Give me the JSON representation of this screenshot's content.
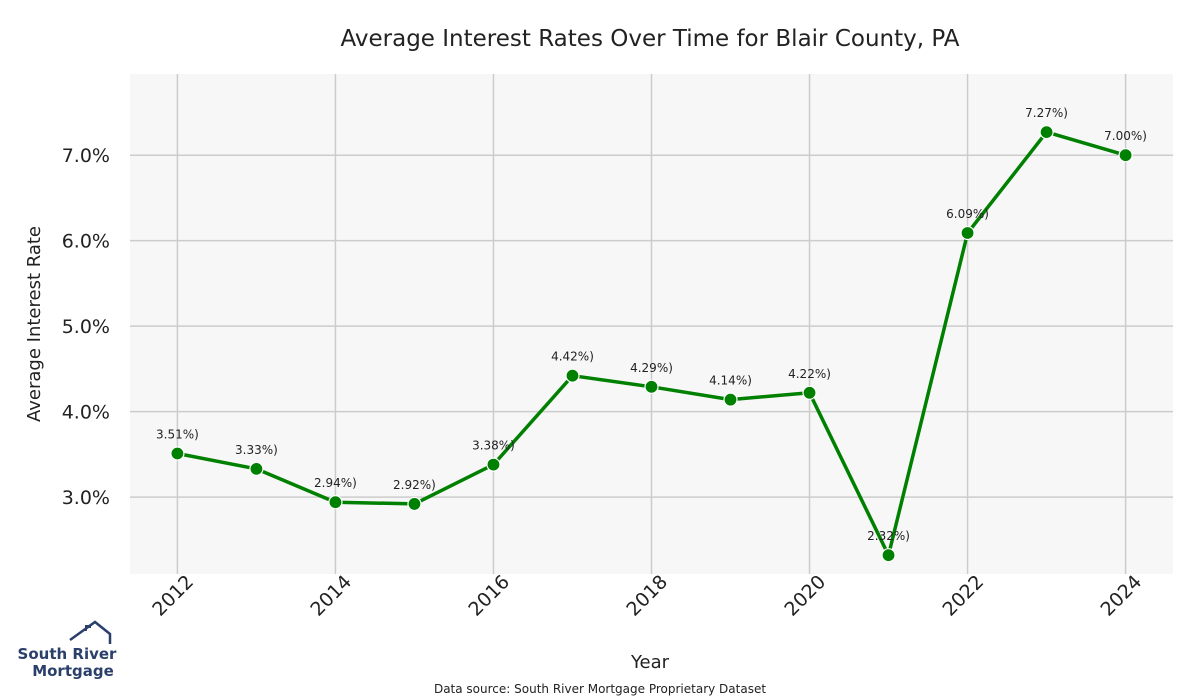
{
  "chart_data": {
    "type": "line",
    "title": "Average Interest Rates Over Time for Blair County, PA",
    "xlabel": "Year",
    "ylabel": "Average Interest Rate",
    "x": [
      2012,
      2013,
      2014,
      2015,
      2016,
      2017,
      2018,
      2019,
      2020,
      2021,
      2022,
      2023,
      2024
    ],
    "values": [
      3.51,
      3.33,
      2.94,
      2.92,
      3.38,
      4.42,
      4.29,
      4.14,
      4.22,
      2.32,
      6.09,
      7.27,
      7.0
    ],
    "data_labels": [
      "3.51%)",
      "3.33%)",
      "2.94%)",
      "2.92%)",
      "3.38%)",
      "4.42%)",
      "4.29%)",
      "4.14%)",
      "4.22%)",
      "2.32%)",
      "6.09%)",
      "7.27%)",
      "7.00%)"
    ],
    "x_ticks": [
      "2012",
      "2014",
      "2016",
      "2018",
      "2020",
      "2022",
      "2024"
    ],
    "x_tick_values": [
      2012,
      2014,
      2016,
      2018,
      2020,
      2022,
      2024
    ],
    "y_ticks": [
      "3.0%",
      "4.0%",
      "5.0%",
      "6.0%",
      "7.0%"
    ],
    "y_tick_values": [
      3.0,
      4.0,
      5.0,
      6.0,
      7.0
    ],
    "xlim": [
      2011.4,
      2024.6
    ],
    "ylim": [
      2.1,
      7.95
    ],
    "grid": true,
    "line_color": "#008000",
    "plot_background": "#f7f7f7",
    "grid_color": "#cccccc"
  },
  "footer": {
    "source": "Data source: South River Mortgage Proprietary Dataset"
  },
  "logo": {
    "line1": "South River",
    "line2": "Mortgage",
    "color": "#2b3f6b",
    "icon": "house-roof-icon"
  }
}
